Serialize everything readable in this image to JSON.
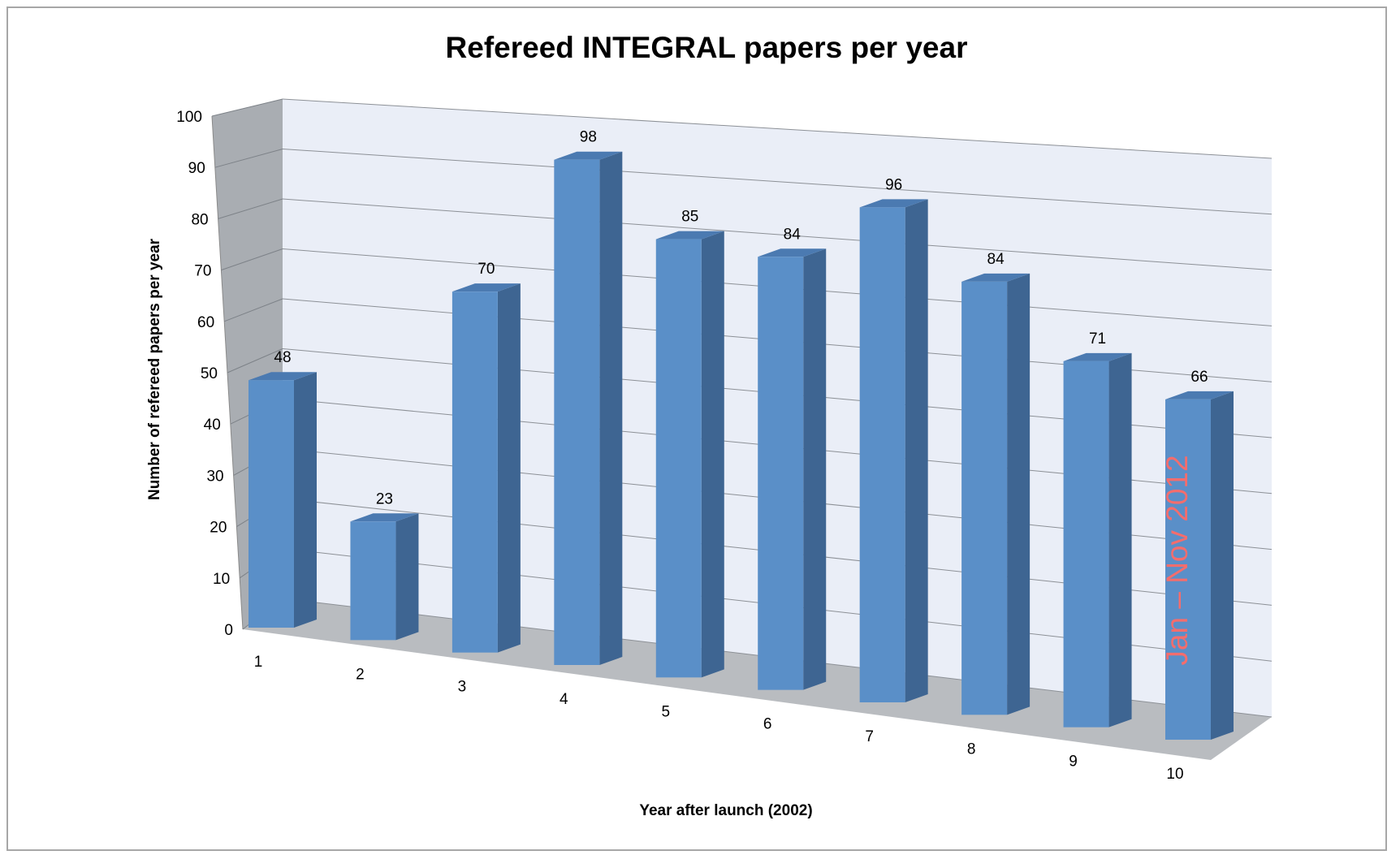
{
  "chart_data": {
    "type": "bar",
    "title": "Refereed INTEGRAL papers per year",
    "xlabel": "Year after launch (2002)",
    "ylabel": "Number of refereed papers per year",
    "categories": [
      "1",
      "2",
      "3",
      "4",
      "5",
      "6",
      "7",
      "8",
      "9",
      "10"
    ],
    "values": [
      48,
      23,
      70,
      98,
      85,
      84,
      96,
      84,
      71,
      66
    ],
    "ylim": [
      0,
      100
    ],
    "yticks": [
      "0",
      "10",
      "20",
      "30",
      "40",
      "50",
      "60",
      "70",
      "80",
      "90",
      "100"
    ],
    "grid": true,
    "legend": "none",
    "annotation": "Jan – Nov 2012",
    "colors": {
      "bar_front": "#5a8fc8",
      "bar_side": "#3e6592",
      "bar_top": "#4b7ab1",
      "back_wall": "#eaeef7",
      "side_wall": "#a9adb2",
      "floor": "#b9bcc0",
      "annotation": "#f46d6d"
    }
  }
}
